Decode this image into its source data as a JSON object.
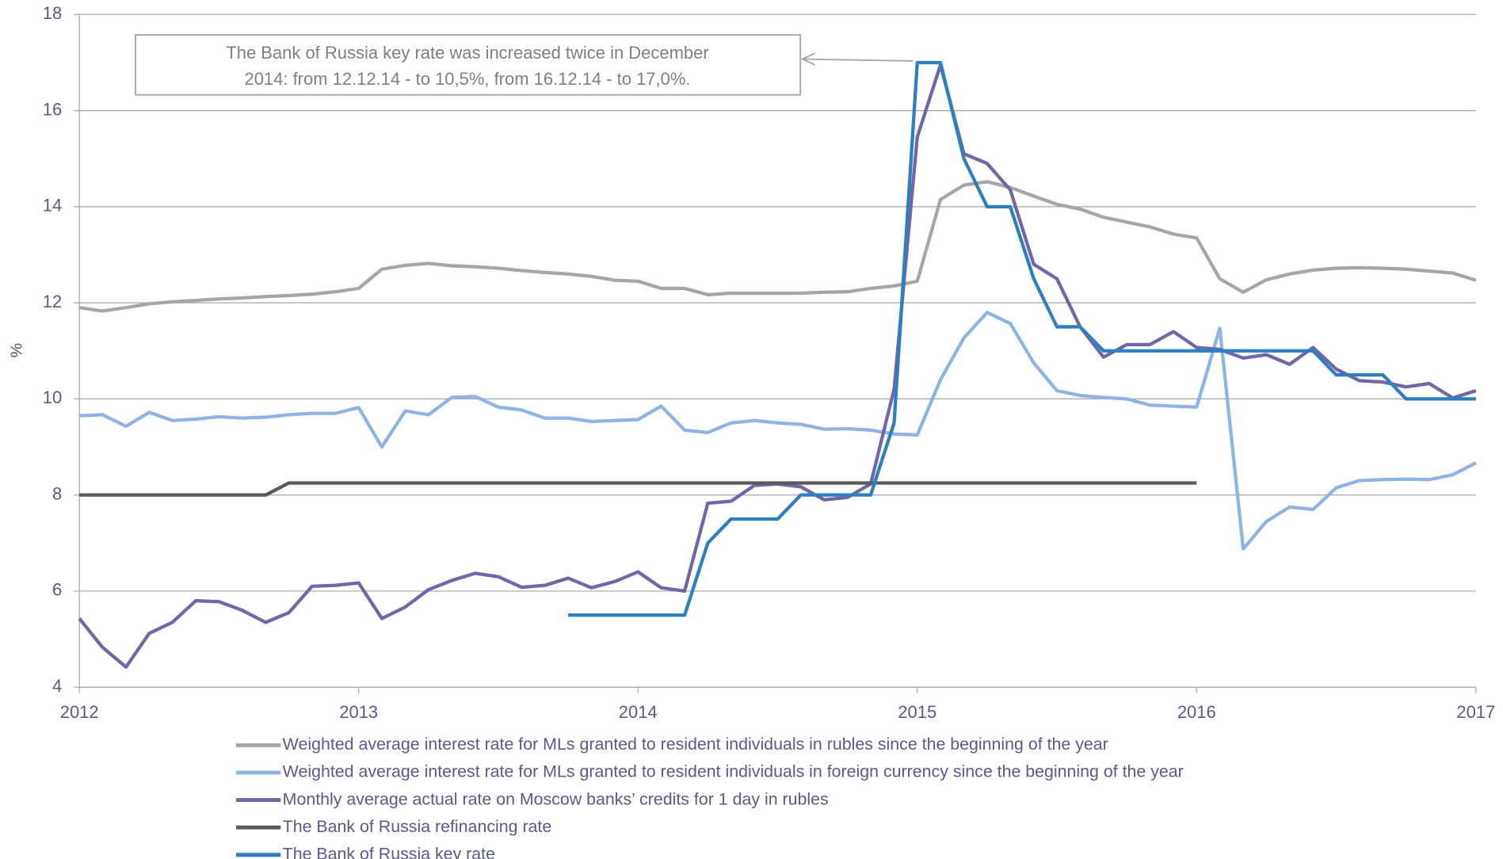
{
  "chart_data": {
    "type": "line",
    "ylabel": "%",
    "annotation": [
      "The Bank of Russia key rate was increased twice in December",
      "2014: from 12.12.14 - to 10,5%, from 16.12.14 - to 17,0%."
    ],
    "x": [
      2012,
      2012.083,
      2012.167,
      2012.25,
      2012.333,
      2012.417,
      2012.5,
      2012.583,
      2012.667,
      2012.75,
      2012.833,
      2012.917,
      2013,
      2013.083,
      2013.167,
      2013.25,
      2013.333,
      2013.417,
      2013.5,
      2013.583,
      2013.667,
      2013.75,
      2013.833,
      2013.917,
      2014,
      2014.083,
      2014.167,
      2014.25,
      2014.333,
      2014.417,
      2014.5,
      2014.583,
      2014.667,
      2014.75,
      2014.833,
      2014.917,
      2015,
      2015.083,
      2015.167,
      2015.25,
      2015.333,
      2015.417,
      2015.5,
      2015.583,
      2015.667,
      2015.75,
      2015.833,
      2015.917,
      2016,
      2016.083,
      2016.167,
      2016.25,
      2016.333,
      2016.417,
      2016.5,
      2016.583,
      2016.667,
      2016.75,
      2016.833,
      2016.917,
      2017
    ],
    "series": [
      {
        "name": "Weighted average interest rate for MLs granted to resident individuals in rubles since the beginning of the year",
        "color": "#a6a6a6",
        "values": [
          11.9,
          11.83,
          11.9,
          11.98,
          12.02,
          12.05,
          12.08,
          12.1,
          12.13,
          12.15,
          12.18,
          12.23,
          12.3,
          12.7,
          12.78,
          12.82,
          12.77,
          12.75,
          12.72,
          12.67,
          12.63,
          12.6,
          12.55,
          12.47,
          12.45,
          12.3,
          12.3,
          12.17,
          12.2,
          12.2,
          12.2,
          12.2,
          12.22,
          12.23,
          12.3,
          12.35,
          12.45,
          14.15,
          14.45,
          14.52,
          14.4,
          14.22,
          14.05,
          13.95,
          13.78,
          13.68,
          13.58,
          13.43,
          13.35,
          12.5,
          12.22,
          12.48,
          12.6,
          12.68,
          12.72,
          12.73,
          12.72,
          12.7,
          12.66,
          12.62,
          12.47
        ]
      },
      {
        "name": "Weighted average interest rate for MLs granted to resident individuals in foreign currency since the beginning of the year",
        "color": "#8db4e2",
        "values": [
          9.65,
          9.67,
          9.43,
          9.72,
          9.55,
          9.58,
          9.63,
          9.6,
          9.62,
          9.67,
          9.7,
          9.7,
          9.82,
          9.0,
          9.75,
          9.67,
          10.03,
          10.05,
          9.83,
          9.77,
          9.6,
          9.6,
          9.53,
          9.55,
          9.57,
          9.85,
          9.35,
          9.3,
          9.5,
          9.55,
          9.5,
          9.47,
          9.37,
          9.38,
          9.35,
          9.27,
          9.25,
          10.4,
          11.27,
          11.8,
          11.57,
          10.75,
          10.17,
          10.07,
          10.03,
          10.0,
          9.87,
          9.85,
          9.83,
          11.47,
          6.88,
          7.45,
          7.75,
          7.7,
          8.15,
          8.3,
          8.32,
          8.33,
          8.32,
          8.42,
          8.67
        ]
      },
      {
        "name": "Monthly average actual rate on Moscow banks’ credits for 1 day in rubles",
        "color": "#7066a8",
        "values": [
          5.43,
          4.83,
          4.42,
          5.12,
          5.35,
          5.8,
          5.78,
          5.6,
          5.35,
          5.55,
          6.1,
          6.12,
          6.17,
          5.43,
          5.67,
          6.03,
          6.22,
          6.37,
          6.3,
          6.08,
          6.12,
          6.27,
          6.07,
          6.2,
          6.4,
          6.07,
          6.0,
          7.83,
          7.87,
          8.2,
          8.23,
          8.17,
          7.9,
          7.95,
          8.23,
          10.2,
          15.45,
          16.95,
          15.1,
          14.9,
          14.35,
          12.8,
          12.5,
          11.5,
          10.87,
          11.13,
          11.13,
          11.4,
          11.07,
          11.03,
          10.85,
          10.92,
          10.72,
          11.07,
          10.62,
          10.38,
          10.35,
          10.25,
          10.32,
          10.02,
          10.17
        ]
      },
      {
        "name": "The Bank of Russia refinancing rate",
        "color": "#595959",
        "values": [
          8,
          8,
          8,
          8,
          8,
          8,
          8,
          8,
          8,
          8.25,
          8.25,
          8.25,
          8.25,
          8.25,
          8.25,
          8.25,
          8.25,
          8.25,
          8.25,
          8.25,
          8.25,
          8.25,
          8.25,
          8.25,
          8.25,
          8.25,
          8.25,
          8.25,
          8.25,
          8.25,
          8.25,
          8.25,
          8.25,
          8.25,
          8.25,
          8.25,
          8.25,
          8.25,
          8.25,
          8.25,
          8.25,
          8.25,
          8.25,
          8.25,
          8.25,
          8.25,
          8.25,
          8.25,
          8.25,
          null,
          null,
          null,
          null,
          null,
          null,
          null,
          null,
          null,
          null,
          null,
          null
        ]
      },
      {
        "name": "The Bank of Russia key rate",
        "color": "#2e7fbf",
        "values": [
          null,
          null,
          null,
          null,
          null,
          null,
          null,
          null,
          null,
          null,
          null,
          null,
          null,
          null,
          null,
          null,
          null,
          null,
          null,
          null,
          null,
          5.5,
          5.5,
          5.5,
          5.5,
          5.5,
          5.5,
          7,
          7.5,
          7.5,
          7.5,
          8,
          8,
          8,
          8,
          9.5,
          17,
          17,
          15,
          14,
          14,
          12.5,
          11.5,
          11.5,
          11,
          11,
          11,
          11,
          11,
          11,
          11,
          11,
          11,
          11,
          10.5,
          10.5,
          10.5,
          10,
          10,
          10,
          10
        ]
      }
    ],
    "xlim": [
      2012,
      2017
    ],
    "xticks": [
      2012,
      2013,
      2014,
      2015,
      2016,
      2017
    ],
    "ylim": [
      4,
      18
    ],
    "yticks": [
      4,
      6,
      8,
      10,
      12,
      14,
      16,
      18
    ],
    "grid": true,
    "legend": "bottom"
  }
}
